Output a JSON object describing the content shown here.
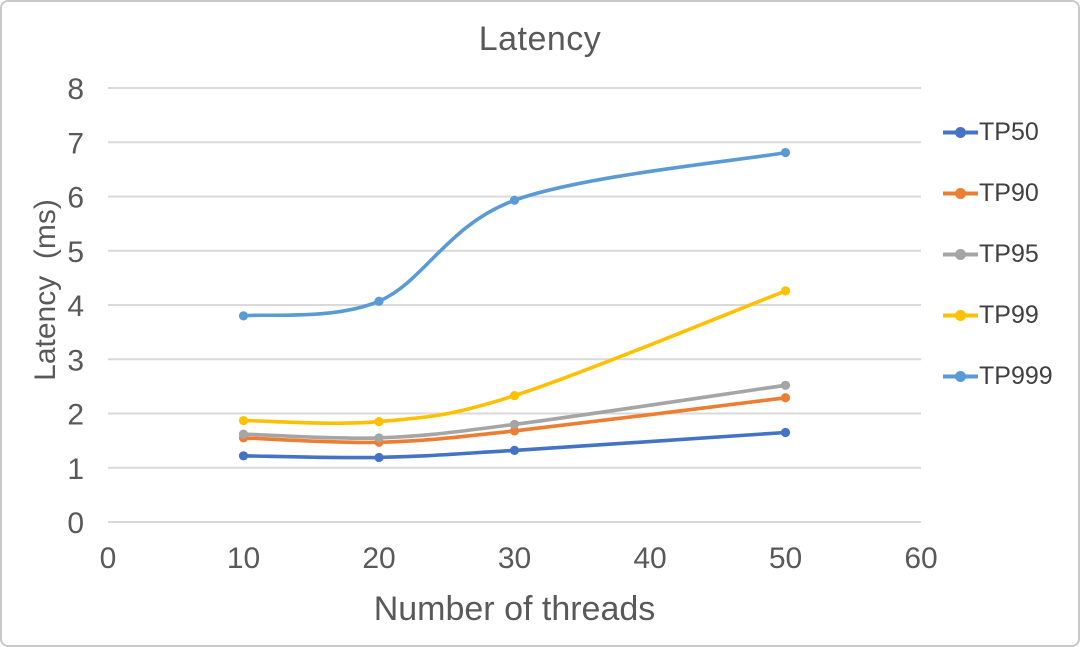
{
  "window": {
    "background": "#ffffff",
    "border_color": "#c9c9c9"
  },
  "chart_data": {
    "type": "line",
    "title": "Latency",
    "xlabel": "Number of threads",
    "ylabel": "Latency  (ms)",
    "x": [
      10,
      20,
      30,
      50
    ],
    "series": [
      {
        "name": "TP50",
        "color": "#4472C4",
        "values": [
          1.22,
          1.19,
          1.32,
          1.65
        ]
      },
      {
        "name": "TP90",
        "color": "#ED7D31",
        "values": [
          1.55,
          1.47,
          1.68,
          2.29
        ]
      },
      {
        "name": "TP95",
        "color": "#A5A5A5",
        "values": [
          1.62,
          1.55,
          1.8,
          2.52
        ]
      },
      {
        "name": "TP99",
        "color": "#FFC000",
        "values": [
          1.87,
          1.85,
          2.33,
          4.26
        ]
      },
      {
        "name": "TP999",
        "color": "#5B9BD5",
        "values": [
          3.8,
          4.07,
          5.93,
          6.81
        ]
      }
    ],
    "xlim": [
      0,
      60
    ],
    "ylim": [
      0,
      8
    ],
    "x_ticks": [
      0,
      10,
      20,
      30,
      40,
      50,
      60
    ],
    "y_ticks": [
      0,
      1,
      2,
      3,
      4,
      5,
      6,
      7,
      8
    ],
    "grid": "horizontal",
    "gridline_color": "#D9D9D9",
    "text_color": "#595959",
    "legend_text_color": "#404040",
    "legend_position": "right",
    "smooth_lines": true,
    "markers": "circle"
  }
}
